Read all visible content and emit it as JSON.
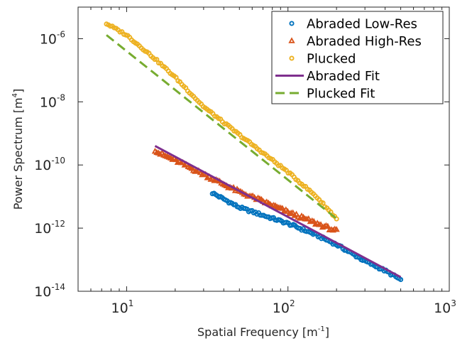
{
  "chart_data": {
    "type": "scatter",
    "title": "",
    "xlabel": "Spatial Frequency",
    "xlabel_unit_base": "m",
    "xlabel_unit_exp": "-1",
    "ylabel": "Power Spectrum",
    "ylabel_unit_base": "m",
    "ylabel_unit_exp": "4",
    "xscale": "log",
    "yscale": "log",
    "xlim": [
      5,
      1000
    ],
    "ylim": [
      1e-14,
      1e-05
    ],
    "xticks": [
      {
        "value": 10,
        "base": "10",
        "exp": "1"
      },
      {
        "value": 100,
        "base": "10",
        "exp": "2"
      },
      {
        "value": 1000,
        "base": "10",
        "exp": "3"
      }
    ],
    "yticks": [
      {
        "value": 1e-14,
        "base": "10",
        "exp": "-14"
      },
      {
        "value": 1e-12,
        "base": "10",
        "exp": "-12"
      },
      {
        "value": 1e-10,
        "base": "10",
        "exp": "-10"
      },
      {
        "value": 1e-08,
        "base": "10",
        "exp": "-8"
      },
      {
        "value": 1e-06,
        "base": "10",
        "exp": "-6"
      }
    ],
    "grid": false,
    "legend_position": "top-right",
    "series": [
      {
        "name": "Abraded Low-Res",
        "kind": "points",
        "marker": "circle",
        "color": "#0072BD",
        "x_range": [
          34,
          500
        ],
        "count": 115,
        "anchors": [
          [
            34,
            1.3e-11
          ],
          [
            50,
            4.5e-12
          ],
          [
            100,
            1.4e-12
          ],
          [
            150,
            6e-13
          ],
          [
            200,
            3e-13
          ],
          [
            300,
            9e-14
          ],
          [
            400,
            4.5e-14
          ],
          [
            500,
            2.3e-14
          ]
        ],
        "jitter": 0.04
      },
      {
        "name": "Abraded High-Res",
        "kind": "points",
        "marker": "triangle",
        "color": "#D95319",
        "x_range": [
          15,
          200
        ],
        "count": 105,
        "anchors": [
          [
            15,
            3e-10
          ],
          [
            16,
            2.3e-10
          ],
          [
            20,
            1.4e-10
          ],
          [
            30,
            5e-11
          ],
          [
            50,
            1.4e-11
          ],
          [
            70,
            7e-12
          ],
          [
            100,
            3.2e-12
          ],
          [
            150,
            1.4e-12
          ],
          [
            200,
            8e-13
          ]
        ],
        "jitter": 0.05
      },
      {
        "name": "Plucked",
        "kind": "points",
        "marker": "circle",
        "color": "#EDB120",
        "x_range": [
          7.5,
          200
        ],
        "count": 120,
        "anchors": [
          [
            7.5,
            3e-06
          ],
          [
            10,
            1.3e-06
          ],
          [
            15,
            2.3e-07
          ],
          [
            20,
            6e-08
          ],
          [
            30,
            7e-09
          ],
          [
            50,
            9e-10
          ],
          [
            100,
            6e-11
          ],
          [
            150,
            1e-11
          ],
          [
            200,
            2e-12
          ]
        ],
        "jitter": 0.03
      },
      {
        "name": "Abraded Fit",
        "kind": "line",
        "dash": "solid",
        "color": "#7E2F8E",
        "x": [
          15,
          500
        ],
        "y": [
          4e-10,
          2.8e-14
        ]
      },
      {
        "name": "Plucked Fit",
        "kind": "line",
        "dash": "dashed",
        "color": "#77AC30",
        "x": [
          7.5,
          200
        ],
        "y": [
          1.3e-06,
          2e-12
        ]
      }
    ]
  }
}
